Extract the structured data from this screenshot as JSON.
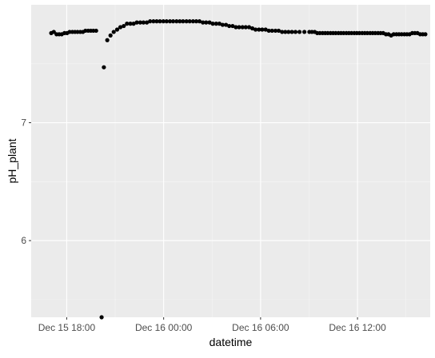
{
  "chart_data": {
    "type": "scatter",
    "xlabel": "datetime",
    "ylabel": "pH_plant",
    "x_tick_labels": [
      "Dec 15 18:00",
      "Dec 16 00:00",
      "Dec 16 06:00",
      "Dec 16 12:00"
    ],
    "y_tick_labels": [
      "6",
      "7"
    ],
    "x_ticks_hours": [
      0,
      6,
      12,
      18
    ],
    "y_ticks": [
      6,
      7
    ],
    "x_unit": "hours relative to Dec 15 18:00",
    "xlim": [
      -2.2,
      22.5
    ],
    "ylim": [
      5.35,
      8.0
    ],
    "grid": true,
    "colors": {
      "panel": "#ebebeb",
      "grid_major": "#ffffff",
      "grid_minor": "#f5f5f5",
      "point": "#000000",
      "text": "#4d4d4d",
      "title": "#000000"
    },
    "points": [
      [
        -0.96,
        7.76
      ],
      [
        -0.8,
        7.77
      ],
      [
        -0.63,
        7.75
      ],
      [
        -0.47,
        7.75
      ],
      [
        -0.31,
        7.75
      ],
      [
        -0.14,
        7.76
      ],
      [
        0.02,
        7.76
      ],
      [
        0.18,
        7.77
      ],
      [
        0.35,
        7.77
      ],
      [
        0.51,
        7.77
      ],
      [
        0.67,
        7.77
      ],
      [
        0.84,
        7.77
      ],
      [
        1.0,
        7.77
      ],
      [
        1.16,
        7.78
      ],
      [
        1.33,
        7.78
      ],
      [
        1.49,
        7.78
      ],
      [
        1.65,
        7.78
      ],
      [
        1.82,
        7.78
      ],
      [
        2.16,
        5.35
      ],
      [
        2.3,
        7.47
      ],
      [
        2.51,
        7.7
      ],
      [
        2.71,
        7.74
      ],
      [
        2.91,
        7.77
      ],
      [
        3.12,
        7.79
      ],
      [
        3.32,
        7.81
      ],
      [
        3.53,
        7.82
      ],
      [
        3.73,
        7.84
      ],
      [
        3.94,
        7.84
      ],
      [
        4.14,
        7.84
      ],
      [
        4.34,
        7.85
      ],
      [
        4.55,
        7.85
      ],
      [
        4.75,
        7.85
      ],
      [
        4.96,
        7.85
      ],
      [
        5.16,
        7.86
      ],
      [
        5.37,
        7.86
      ],
      [
        5.57,
        7.86
      ],
      [
        5.77,
        7.86
      ],
      [
        5.98,
        7.86
      ],
      [
        6.18,
        7.86
      ],
      [
        6.39,
        7.86
      ],
      [
        6.59,
        7.86
      ],
      [
        6.8,
        7.86
      ],
      [
        7.0,
        7.86
      ],
      [
        7.2,
        7.86
      ],
      [
        7.41,
        7.86
      ],
      [
        7.61,
        7.86
      ],
      [
        7.82,
        7.86
      ],
      [
        8.02,
        7.86
      ],
      [
        8.22,
        7.86
      ],
      [
        8.43,
        7.85
      ],
      [
        8.63,
        7.85
      ],
      [
        8.84,
        7.85
      ],
      [
        9.04,
        7.84
      ],
      [
        9.25,
        7.84
      ],
      [
        9.45,
        7.84
      ],
      [
        9.65,
        7.83
      ],
      [
        9.86,
        7.83
      ],
      [
        10.06,
        7.82
      ],
      [
        10.27,
        7.82
      ],
      [
        10.47,
        7.81
      ],
      [
        10.67,
        7.81
      ],
      [
        10.88,
        7.81
      ],
      [
        11.08,
        7.81
      ],
      [
        11.29,
        7.81
      ],
      [
        11.49,
        7.8
      ],
      [
        11.69,
        7.79
      ],
      [
        11.9,
        7.79
      ],
      [
        12.1,
        7.79
      ],
      [
        12.31,
        7.79
      ],
      [
        12.51,
        7.78
      ],
      [
        12.71,
        7.78
      ],
      [
        12.92,
        7.78
      ],
      [
        13.12,
        7.78
      ],
      [
        13.33,
        7.77
      ],
      [
        13.53,
        7.77
      ],
      [
        13.73,
        7.77
      ],
      [
        13.94,
        7.77
      ],
      [
        14.16,
        7.77
      ],
      [
        14.41,
        7.77
      ],
      [
        14.71,
        7.77
      ],
      [
        15.02,
        7.77
      ],
      [
        15.18,
        7.77
      ],
      [
        15.35,
        7.77
      ],
      [
        15.51,
        7.76
      ],
      [
        15.67,
        7.76
      ],
      [
        15.84,
        7.76
      ],
      [
        16.0,
        7.76
      ],
      [
        16.16,
        7.76
      ],
      [
        16.33,
        7.76
      ],
      [
        16.49,
        7.76
      ],
      [
        16.65,
        7.76
      ],
      [
        16.82,
        7.76
      ],
      [
        16.98,
        7.76
      ],
      [
        17.14,
        7.76
      ],
      [
        17.31,
        7.76
      ],
      [
        17.47,
        7.76
      ],
      [
        17.63,
        7.76
      ],
      [
        17.8,
        7.76
      ],
      [
        17.96,
        7.76
      ],
      [
        18.12,
        7.76
      ],
      [
        18.29,
        7.76
      ],
      [
        18.45,
        7.76
      ],
      [
        18.61,
        7.76
      ],
      [
        18.78,
        7.76
      ],
      [
        18.94,
        7.76
      ],
      [
        19.1,
        7.76
      ],
      [
        19.27,
        7.76
      ],
      [
        19.43,
        7.76
      ],
      [
        19.59,
        7.76
      ],
      [
        19.76,
        7.75
      ],
      [
        19.92,
        7.75
      ],
      [
        20.08,
        7.74
      ],
      [
        20.24,
        7.75
      ],
      [
        20.41,
        7.75
      ],
      [
        20.57,
        7.75
      ],
      [
        20.73,
        7.75
      ],
      [
        20.9,
        7.75
      ],
      [
        21.06,
        7.75
      ],
      [
        21.22,
        7.75
      ],
      [
        21.39,
        7.76
      ],
      [
        21.55,
        7.76
      ],
      [
        21.71,
        7.76
      ],
      [
        21.88,
        7.75
      ],
      [
        22.04,
        7.75
      ],
      [
        22.2,
        7.75
      ]
    ]
  }
}
